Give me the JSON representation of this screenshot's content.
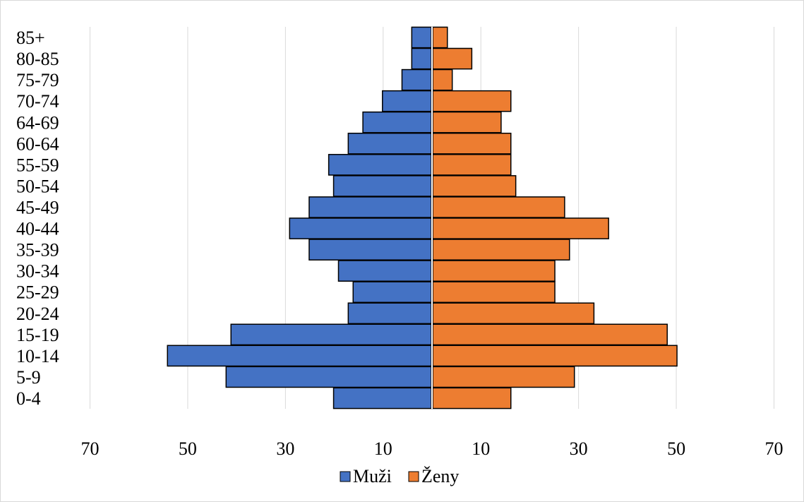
{
  "chart_data": {
    "type": "bar",
    "orientation": "horizontal",
    "layout": "population-pyramid",
    "categories": [
      "85+",
      "80-85",
      "75-79",
      "70-74",
      "64-69",
      "60-64",
      "55-59",
      "50-54",
      "45-49",
      "40-44",
      "35-39",
      "30-34",
      "25-29",
      "20-24",
      "15-19",
      "10-14",
      "5-9",
      "0-4"
    ],
    "series": [
      {
        "name": "Muži",
        "color": "#4472c4",
        "side": "left",
        "values": [
          4,
          4,
          6,
          10,
          14,
          17,
          21,
          20,
          25,
          29,
          25,
          19,
          16,
          17,
          41,
          54,
          42,
          20
        ]
      },
      {
        "name": "Ženy",
        "color": "#ed7d31",
        "side": "right",
        "values": [
          3,
          8,
          4,
          16,
          14,
          16,
          16,
          17,
          27,
          36,
          28,
          25,
          25,
          33,
          48,
          50,
          29,
          16
        ]
      }
    ],
    "x_ticks": [
      "70",
      "50",
      "30",
      "10",
      "10",
      "30",
      "50",
      "70"
    ],
    "xlim": [
      -70,
      70
    ],
    "grid": true,
    "legend_position": "bottom"
  }
}
